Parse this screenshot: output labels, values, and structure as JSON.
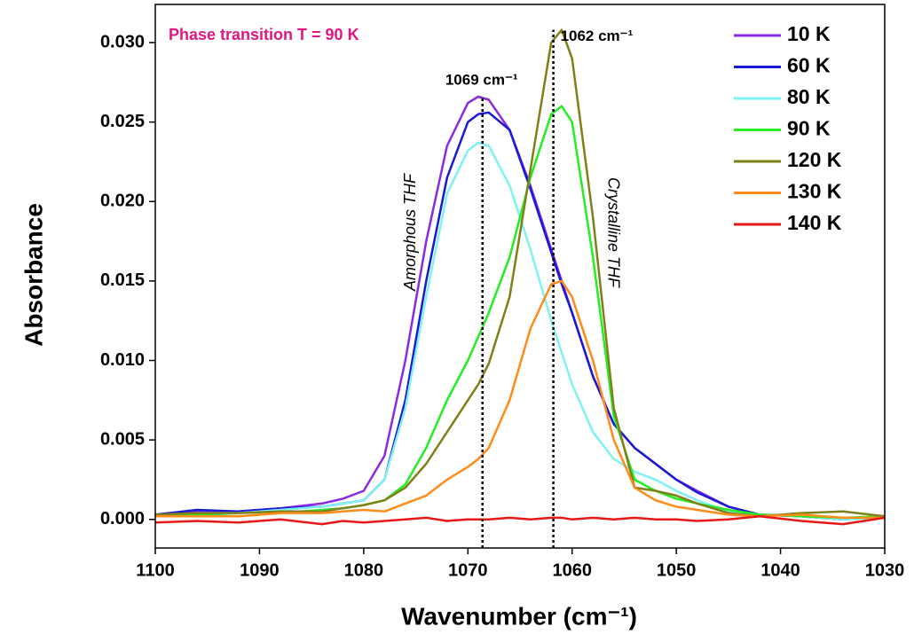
{
  "chart_data": {
    "type": "line",
    "x_label": "Wavenumber (cm⁻¹)",
    "y_label": "Absorbance",
    "annotation": "Phase transition T = 90 K",
    "annotation_color": "#e0177f",
    "x": [
      1100,
      1096,
      1092,
      1088,
      1084,
      1082,
      1080,
      1078,
      1076,
      1074,
      1072,
      1070,
      1069,
      1068,
      1066,
      1064,
      1062,
      1061,
      1060,
      1058,
      1056,
      1054,
      1052,
      1050,
      1048,
      1045,
      1042,
      1038,
      1034,
      1030
    ],
    "xlim": [
      1100,
      1030
    ],
    "xticks": [
      1100,
      1090,
      1080,
      1070,
      1060,
      1050,
      1040,
      1030
    ],
    "ylim": [
      -0.0018,
      0.0324
    ],
    "yticks": [
      {
        "value": 0,
        "label": "0.000"
      },
      {
        "value": 0.005,
        "label": "0.005"
      },
      {
        "value": 0.01,
        "label": "0.010"
      },
      {
        "value": 0.015,
        "label": "0.015"
      },
      {
        "value": 0.02,
        "label": "0.020"
      },
      {
        "value": 0.025,
        "label": "0.025"
      },
      {
        "value": 0.03,
        "label": "0.030"
      }
    ],
    "peak_markers": [
      {
        "x": 1068.6,
        "y": 0.0266,
        "label": "1069 cm⁻¹"
      },
      {
        "x": 1061.8,
        "y": 0.0308,
        "label": "1062 cm⁻¹"
      }
    ],
    "region_labels": [
      "Amorphous THF",
      "Crystalline THF"
    ],
    "legend": "top-right",
    "series": [
      {
        "name": "10 K",
        "color": "#8a2be2",
        "values": [
          0.0003,
          0.0005,
          0.0005,
          0.0007,
          0.001,
          0.0013,
          0.0018,
          0.004,
          0.01,
          0.0175,
          0.0235,
          0.0262,
          0.0266,
          0.0264,
          0.0245,
          0.021,
          0.017,
          0.015,
          0.013,
          0.009,
          0.006,
          0.0045,
          0.0035,
          0.0025,
          0.0018,
          0.0008,
          0.0003,
          0.0002,
          0.0,
          0.0002
        ]
      },
      {
        "name": "60 K",
        "color": "#1a1ad6",
        "values": [
          0.0003,
          0.0006,
          0.0005,
          0.0007,
          0.0008,
          0.001,
          0.0012,
          0.0025,
          0.0075,
          0.015,
          0.0215,
          0.025,
          0.0255,
          0.0256,
          0.0245,
          0.0208,
          0.0168,
          0.0148,
          0.013,
          0.009,
          0.006,
          0.0045,
          0.0035,
          0.0025,
          0.0017,
          0.0008,
          0.0003,
          0.0002,
          0.0,
          0.0002
        ]
      },
      {
        "name": "80 K",
        "color": "#7ff2f2",
        "values": [
          0.0002,
          0.0004,
          0.0004,
          0.0006,
          0.0008,
          0.001,
          0.0012,
          0.0025,
          0.007,
          0.014,
          0.0205,
          0.0232,
          0.0237,
          0.0235,
          0.021,
          0.017,
          0.0125,
          0.0105,
          0.0085,
          0.0055,
          0.0038,
          0.003,
          0.0025,
          0.0018,
          0.0012,
          0.0005,
          0.0003,
          0.0002,
          0.0,
          0.0001
        ]
      },
      {
        "name": "90 K",
        "color": "#22ee22",
        "values": [
          0.0003,
          0.0003,
          0.0002,
          0.0004,
          0.0006,
          0.0007,
          0.0009,
          0.0012,
          0.0022,
          0.0045,
          0.0075,
          0.01,
          0.0115,
          0.013,
          0.0165,
          0.0215,
          0.0255,
          0.026,
          0.025,
          0.0165,
          0.0065,
          0.0025,
          0.0018,
          0.0013,
          0.001,
          0.0006,
          0.0003,
          0.0002,
          0.0001,
          0.0002
        ]
      },
      {
        "name": "120 K",
        "color": "#808018",
        "values": [
          0.0003,
          0.0004,
          0.0004,
          0.0005,
          0.0005,
          0.0007,
          0.0009,
          0.0012,
          0.002,
          0.0035,
          0.0055,
          0.0075,
          0.0085,
          0.0098,
          0.014,
          0.022,
          0.03,
          0.0308,
          0.029,
          0.019,
          0.007,
          0.002,
          0.0018,
          0.0015,
          0.001,
          0.0004,
          0.0002,
          0.0004,
          0.0005,
          0.0002
        ]
      },
      {
        "name": "130 K",
        "color": "#ff8c1a",
        "values": [
          0.0002,
          0.0002,
          0.0002,
          0.0004,
          0.0004,
          0.0005,
          0.0006,
          0.0005,
          0.001,
          0.0015,
          0.0025,
          0.0033,
          0.0038,
          0.0045,
          0.0075,
          0.012,
          0.0148,
          0.015,
          0.014,
          0.01,
          0.005,
          0.002,
          0.0012,
          0.0008,
          0.0006,
          0.0003,
          0.0002,
          0.0003,
          0.0001,
          0.0001
        ]
      },
      {
        "name": "140 K",
        "color": "#e81818",
        "values": [
          -0.0002,
          -0.0001,
          -0.0002,
          0.0,
          -0.0003,
          -0.0001,
          -0.0002,
          -0.0001,
          0.0,
          0.0001,
          -0.0001,
          0.0,
          0.0,
          0.0,
          0.0001,
          0.0,
          0.0001,
          0.0001,
          0.0,
          0.0001,
          0.0,
          0.0001,
          0.0,
          0.0,
          -0.0001,
          0.0,
          0.0002,
          -0.0001,
          -0.0003,
          0.0001
        ]
      }
    ]
  }
}
